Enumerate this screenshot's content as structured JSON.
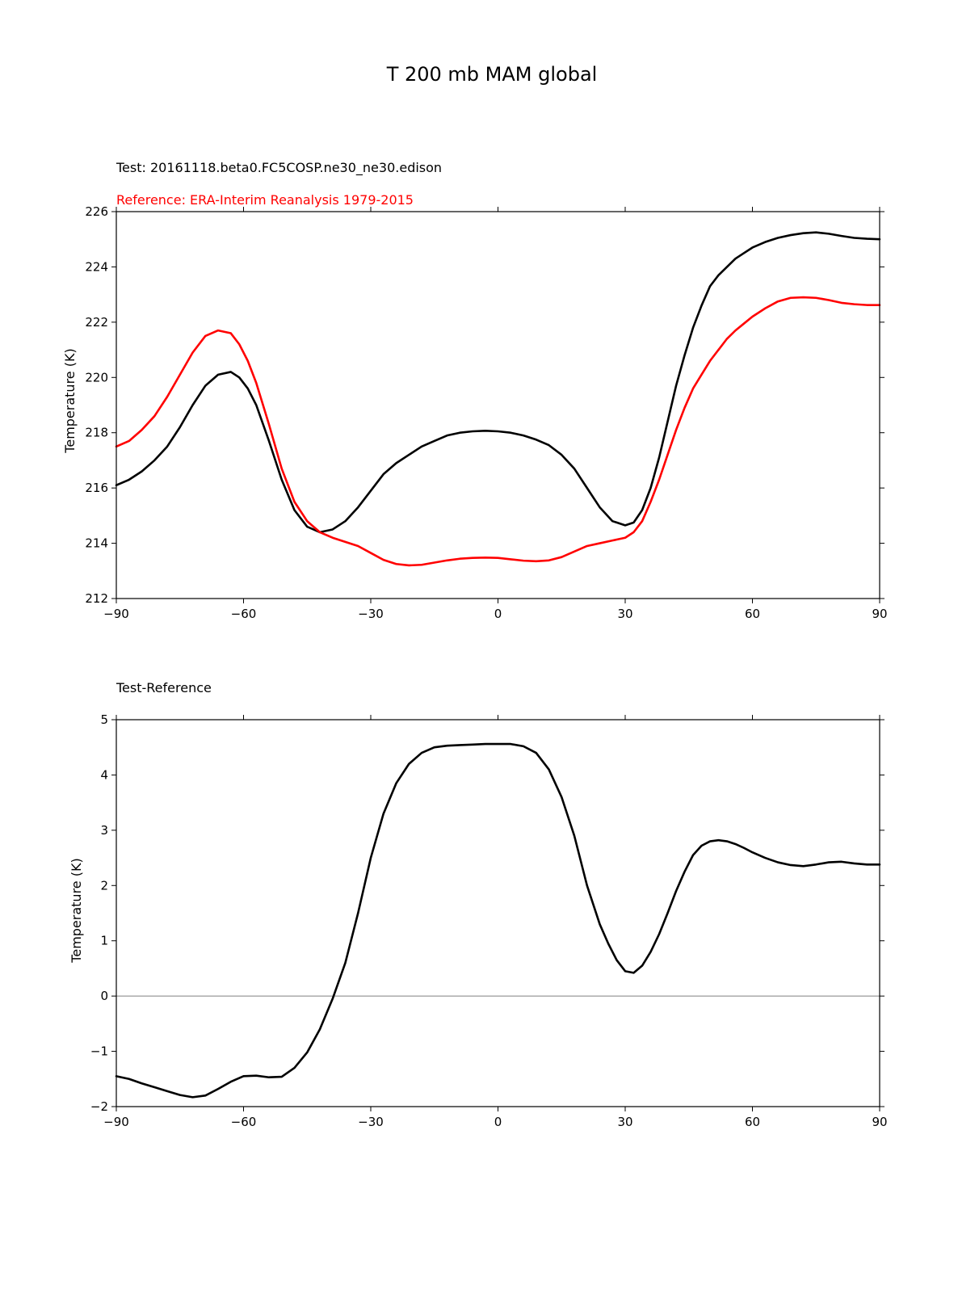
{
  "figure": {
    "title": "T 200 mb MAM global"
  },
  "chart_data": [
    {
      "type": "line",
      "test_label": "Test: 20161118.beta0.FC5COSP.ne30_ne30.edison",
      "reference_label": "Reference: ERA-Interim Reanalysis 1979-2015",
      "ylabel": "Temperature (K)",
      "xlabel": "",
      "xlim": [
        -90,
        90
      ],
      "ylim": [
        212,
        226
      ],
      "xticks": [
        -90,
        -60,
        -30,
        0,
        30,
        60,
        90
      ],
      "xtick_labels": [
        "−90",
        "−60",
        "−30",
        "0",
        "30",
        "60",
        "90"
      ],
      "yticks": [
        212,
        214,
        216,
        218,
        220,
        222,
        224,
        226
      ],
      "ytick_labels": [
        "212",
        "214",
        "216",
        "218",
        "220",
        "222",
        "224",
        "226"
      ],
      "grid": false,
      "series": [
        {
          "color": "#000000",
          "x": [
            -90,
            -87,
            -84,
            -81,
            -78,
            -75,
            -72,
            -69,
            -66,
            -63,
            -61,
            -59,
            -57,
            -54,
            -51,
            -48,
            -45,
            -42,
            -39,
            -36,
            -33,
            -30,
            -27,
            -24,
            -21,
            -18,
            -15,
            -12,
            -9,
            -6,
            -3,
            0,
            3,
            6,
            9,
            12,
            15,
            18,
            21,
            24,
            27,
            30,
            32,
            34,
            36,
            38,
            40,
            42,
            44,
            46,
            48,
            50,
            52,
            54,
            56,
            58,
            60,
            63,
            66,
            69,
            72,
            75,
            78,
            81,
            84,
            87,
            90
          ],
          "y": [
            216.1,
            216.3,
            216.6,
            217.0,
            217.5,
            218.2,
            219.0,
            219.7,
            220.1,
            220.2,
            220.0,
            219.6,
            219.0,
            217.7,
            216.3,
            215.2,
            214.6,
            214.4,
            214.5,
            214.8,
            215.3,
            215.9,
            216.5,
            216.9,
            217.2,
            217.5,
            217.7,
            217.9,
            218.0,
            218.05,
            218.07,
            218.05,
            218.0,
            217.9,
            217.75,
            217.55,
            217.2,
            216.7,
            216.0,
            215.3,
            214.8,
            214.65,
            214.75,
            215.2,
            216.0,
            217.1,
            218.4,
            219.7,
            220.8,
            221.8,
            222.6,
            223.3,
            223.7,
            224.0,
            224.3,
            224.5,
            224.7,
            224.9,
            225.05,
            225.15,
            225.22,
            225.25,
            225.2,
            225.12,
            225.05,
            225.02,
            225.0
          ]
        },
        {
          "color": "#ff0000",
          "x": [
            -90,
            -87,
            -84,
            -81,
            -78,
            -75,
            -72,
            -69,
            -66,
            -63,
            -61,
            -59,
            -57,
            -54,
            -51,
            -48,
            -45,
            -42,
            -39,
            -36,
            -33,
            -30,
            -27,
            -24,
            -21,
            -18,
            -15,
            -12,
            -9,
            -6,
            -3,
            0,
            3,
            6,
            9,
            12,
            15,
            18,
            21,
            24,
            27,
            30,
            32,
            34,
            36,
            38,
            40,
            42,
            44,
            46,
            48,
            50,
            52,
            54,
            56,
            58,
            60,
            63,
            66,
            69,
            72,
            75,
            78,
            81,
            84,
            87,
            90
          ],
          "y": [
            217.5,
            217.7,
            218.1,
            218.6,
            219.3,
            220.1,
            220.9,
            221.5,
            221.7,
            221.6,
            221.2,
            220.6,
            219.8,
            218.3,
            216.7,
            215.5,
            214.8,
            214.4,
            214.2,
            214.05,
            213.9,
            213.65,
            213.4,
            213.25,
            213.2,
            213.22,
            213.3,
            213.38,
            213.44,
            213.47,
            213.48,
            213.47,
            213.42,
            213.37,
            213.35,
            213.38,
            213.5,
            213.7,
            213.9,
            214.0,
            214.1,
            214.2,
            214.4,
            214.8,
            215.5,
            216.3,
            217.2,
            218.1,
            218.9,
            219.6,
            220.1,
            220.6,
            221.0,
            221.4,
            221.7,
            221.95,
            222.2,
            222.5,
            222.75,
            222.88,
            222.9,
            222.88,
            222.8,
            222.7,
            222.65,
            222.62,
            222.62
          ]
        }
      ]
    },
    {
      "type": "line",
      "subtitle": "Test-Reference",
      "ylabel": "Temperature (K)",
      "xlabel": "",
      "xlim": [
        -90,
        90
      ],
      "ylim": [
        -2,
        5
      ],
      "xticks": [
        -90,
        -60,
        -30,
        0,
        30,
        60,
        90
      ],
      "xtick_labels": [
        "−90",
        "−60",
        "−30",
        "0",
        "30",
        "60",
        "90"
      ],
      "yticks": [
        -2,
        -1,
        0,
        1,
        2,
        3,
        4,
        5
      ],
      "ytick_labels": [
        "−2",
        "−1",
        "0",
        "1",
        "2",
        "3",
        "4",
        "5"
      ],
      "zero_line": true,
      "grid": false,
      "series": [
        {
          "color": "#000000",
          "x": [
            -90,
            -87,
            -84,
            -81,
            -78,
            -75,
            -72,
            -69,
            -66,
            -63,
            -60,
            -57,
            -54,
            -51,
            -48,
            -45,
            -42,
            -39,
            -36,
            -33,
            -30,
            -27,
            -24,
            -21,
            -18,
            -15,
            -12,
            -9,
            -6,
            -3,
            0,
            3,
            6,
            9,
            12,
            15,
            18,
            21,
            24,
            26,
            28,
            30,
            32,
            34,
            36,
            38,
            40,
            42,
            44,
            46,
            48,
            50,
            52,
            54,
            56,
            58,
            60,
            63,
            66,
            69,
            72,
            75,
            78,
            81,
            84,
            87,
            90
          ],
          "y": [
            -1.45,
            -1.5,
            -1.58,
            -1.65,
            -1.72,
            -1.79,
            -1.83,
            -1.8,
            -1.68,
            -1.55,
            -1.45,
            -1.44,
            -1.47,
            -1.46,
            -1.3,
            -1.02,
            -0.6,
            -0.05,
            0.6,
            1.5,
            2.5,
            3.3,
            3.85,
            4.2,
            4.4,
            4.5,
            4.53,
            4.54,
            4.55,
            4.56,
            4.56,
            4.56,
            4.52,
            4.4,
            4.1,
            3.6,
            2.9,
            2.0,
            1.3,
            0.95,
            0.65,
            0.45,
            0.42,
            0.55,
            0.8,
            1.12,
            1.5,
            1.9,
            2.25,
            2.55,
            2.72,
            2.8,
            2.82,
            2.8,
            2.75,
            2.68,
            2.6,
            2.5,
            2.42,
            2.37,
            2.35,
            2.38,
            2.42,
            2.43,
            2.4,
            2.38,
            2.38
          ]
        }
      ]
    }
  ]
}
